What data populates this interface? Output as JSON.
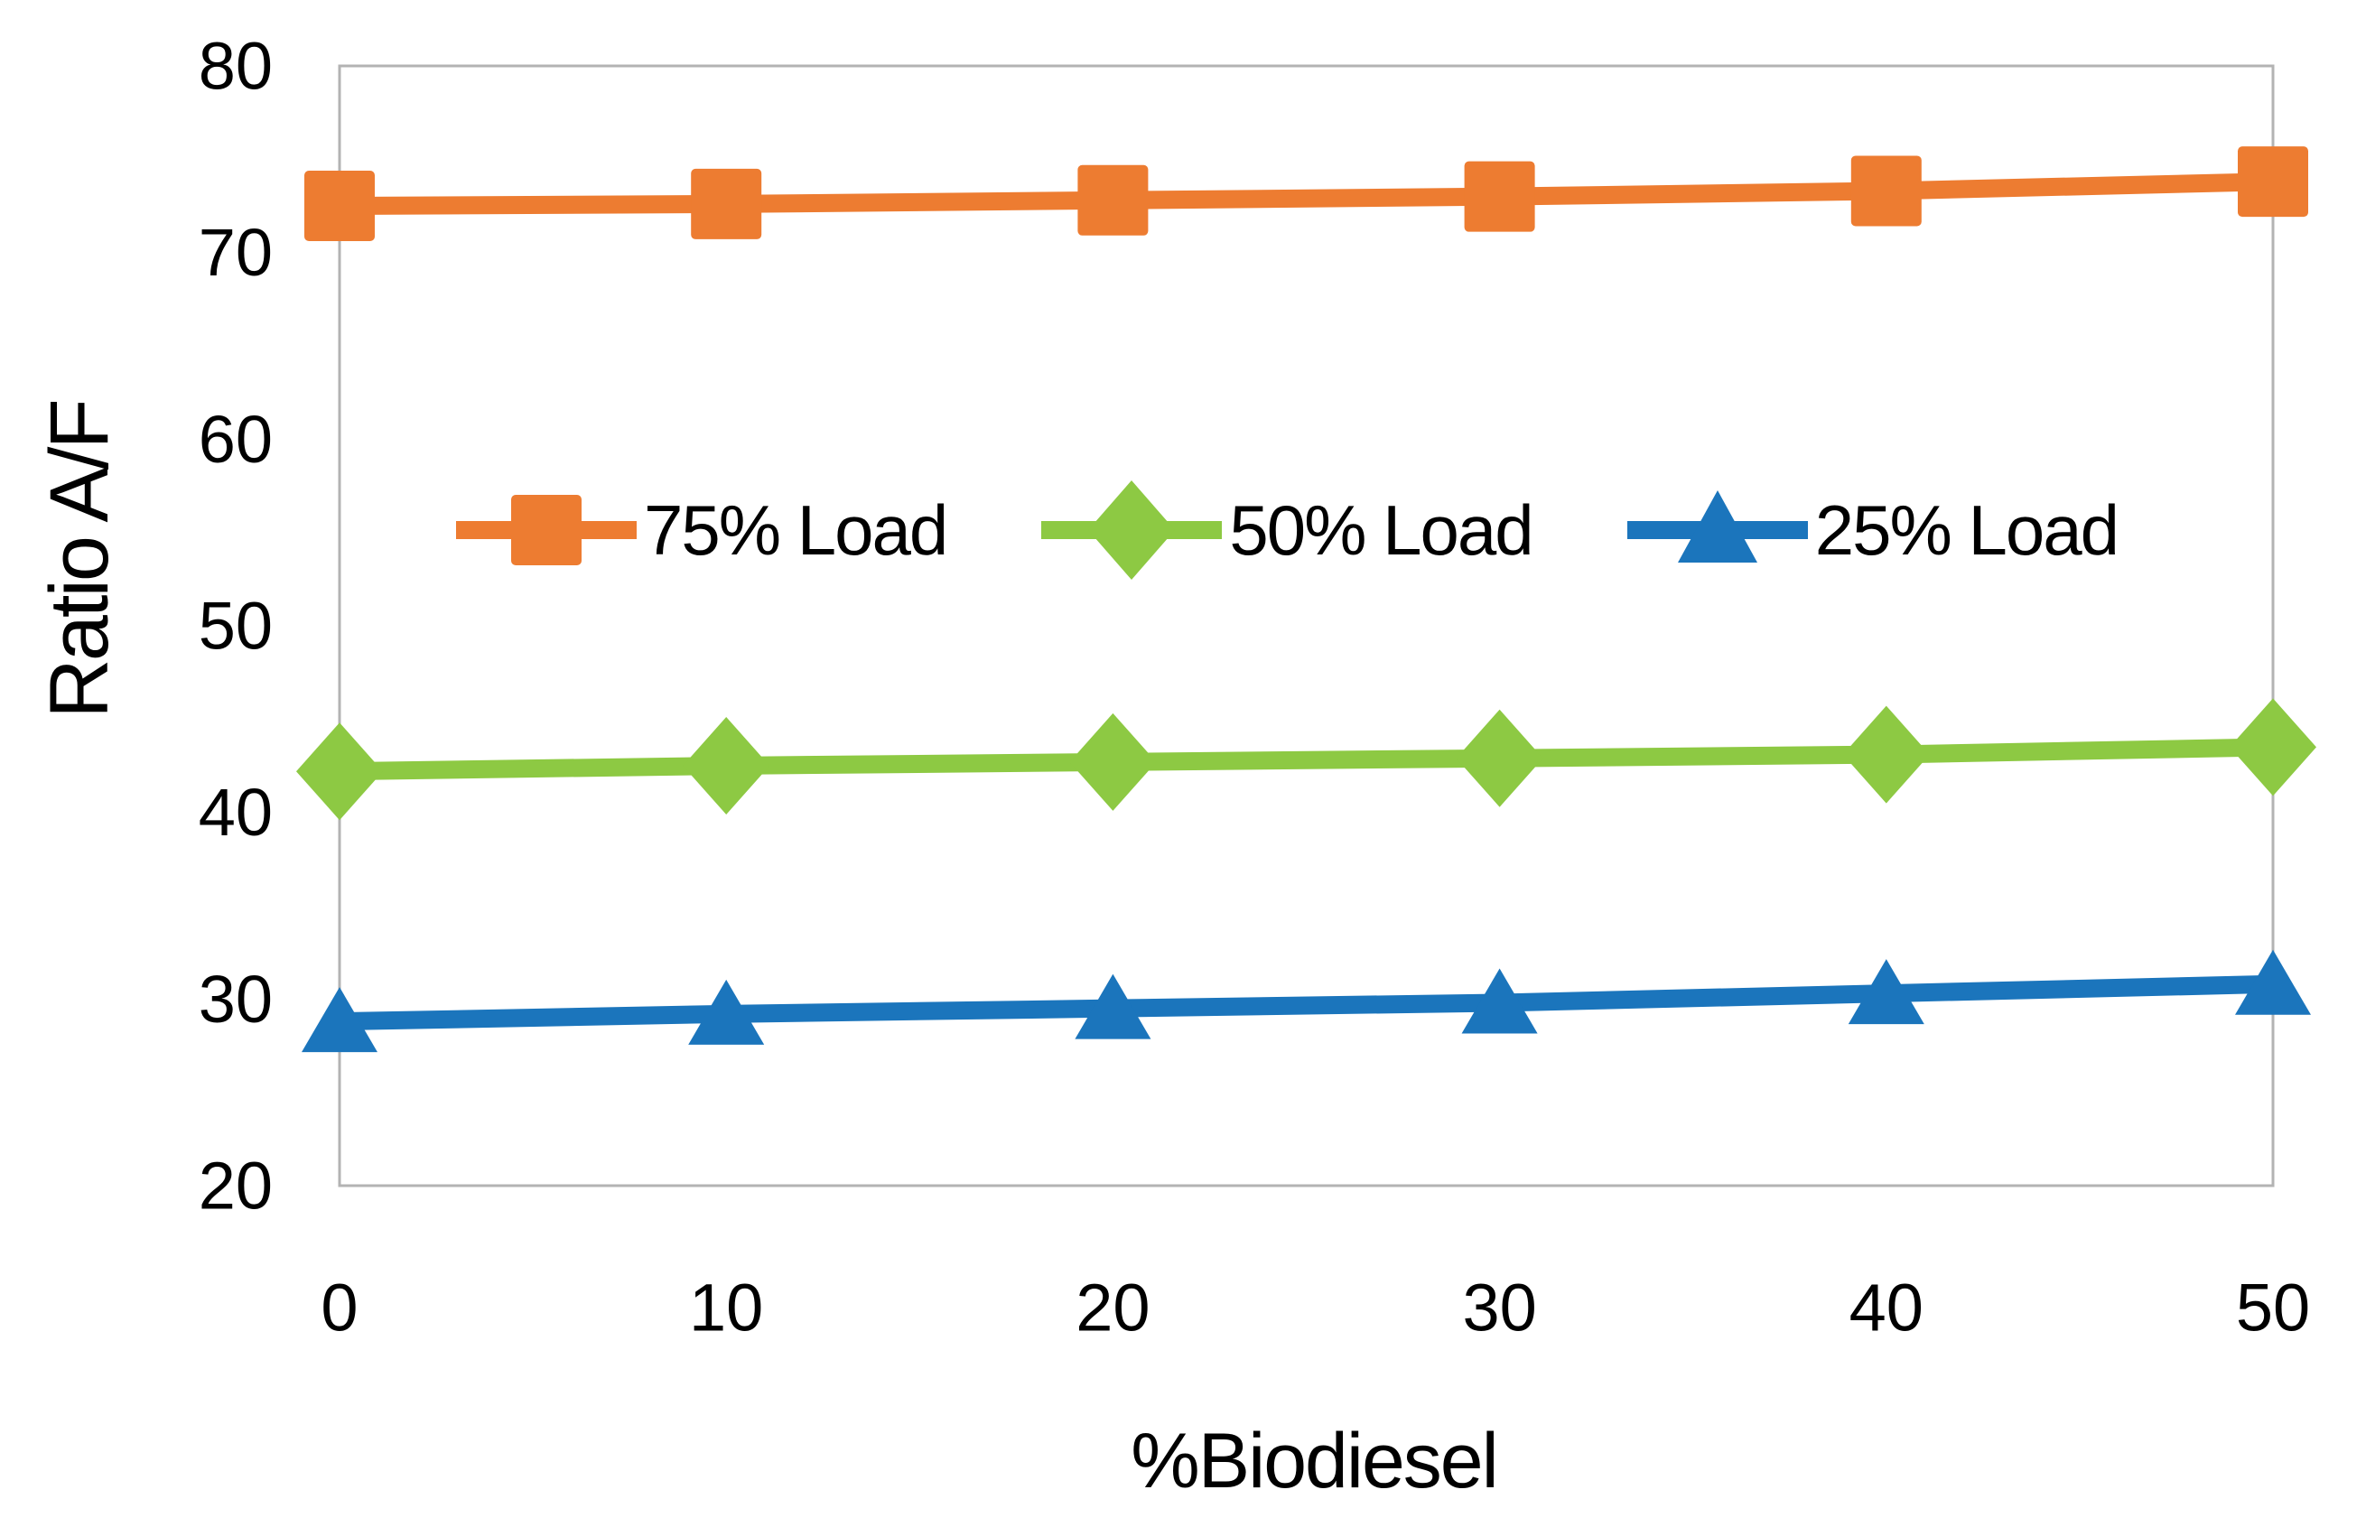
{
  "chart_data": {
    "type": "line",
    "title": "",
    "xlabel": "%Biodiesel",
    "ylabel": "Ratio A/F",
    "x": [
      0,
      10,
      20,
      30,
      40,
      50
    ],
    "xticks": [
      0,
      10,
      20,
      30,
      40,
      50
    ],
    "yticks": [
      20,
      30,
      40,
      50,
      60,
      70,
      80
    ],
    "xlim": [
      0,
      50
    ],
    "ylim": [
      20,
      80
    ],
    "grid": false,
    "legend_position": "inside-upper-center",
    "plot_border_color": "#b3b3b3",
    "text_color": "#000000",
    "series": [
      {
        "name": "75% Load",
        "marker": "square",
        "color": "#ED7C31",
        "values": [
          72.5,
          72.6,
          72.8,
          73.0,
          73.3,
          73.8
        ]
      },
      {
        "name": "50% Load",
        "marker": "diamond",
        "color": "#8DC943",
        "values": [
          42.2,
          42.5,
          42.7,
          42.9,
          43.1,
          43.5
        ]
      },
      {
        "name": "25% Load",
        "marker": "triangle",
        "color": "#1B75BC",
        "values": [
          28.8,
          29.2,
          29.5,
          29.8,
          30.3,
          30.8
        ]
      }
    ]
  }
}
